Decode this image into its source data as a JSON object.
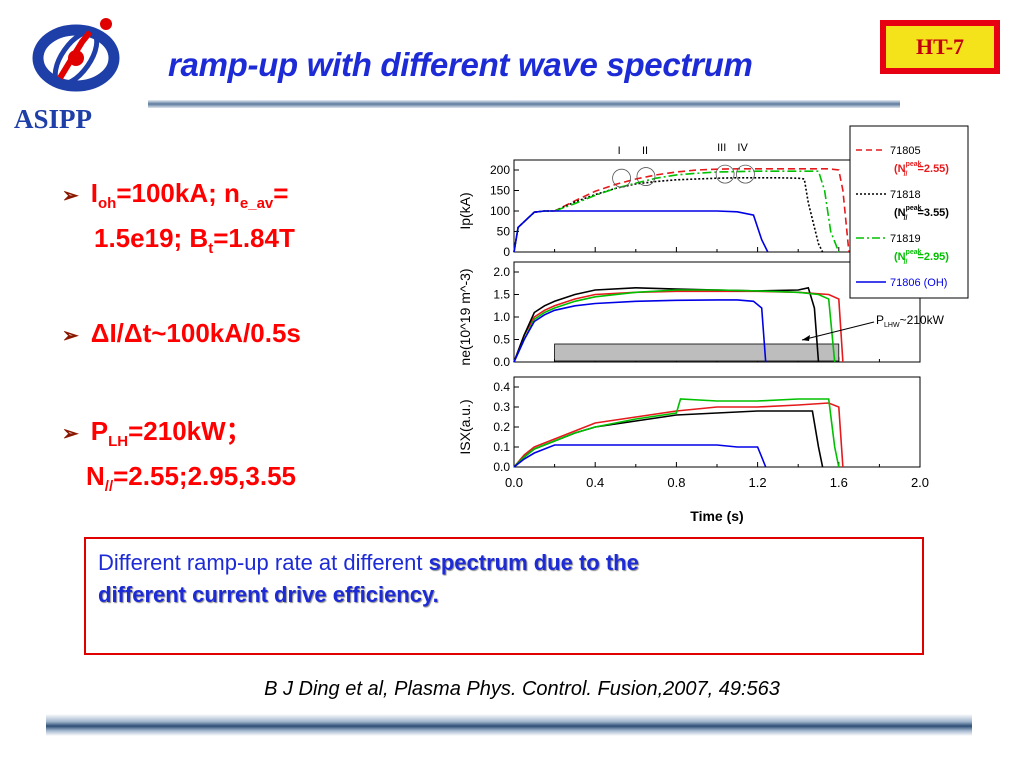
{
  "title": "ramp-up with different wave spectrum",
  "logo_text": "ASIPP",
  "badge": "HT-7",
  "bullets": {
    "b1": {
      "p1": "I",
      "s1": "oh",
      "p2": "=100kA; n",
      "s2": "e_av",
      "p3": "=",
      "line2a": "1.5e19; B",
      "s3": "t",
      "line2b": "=1.84T"
    },
    "b2": {
      "text": "ΔI/Δt~100kA/0.5s"
    },
    "b3": {
      "p1": "P",
      "s1": "LH",
      "p2": "=210kW；",
      "line2a": "N",
      "s2": "//",
      "line2b": "=2.55;2.95,3.55"
    }
  },
  "box": {
    "normal": "Different ramp-up rate at different ",
    "bold1": "spectrum due to the",
    "bold2": "different current drive efficiency."
  },
  "citation": "B J Ding et al, Plasma Phys. Control. Fusion,2007, 49:563",
  "chart_data": [
    {
      "type": "line",
      "panel": "Ip",
      "ylabel": "Ip(kA)",
      "ylim": [
        0,
        200
      ],
      "yticks": [
        "0",
        "50",
        "100",
        "150",
        "200"
      ],
      "xlim": [
        0,
        2.0
      ],
      "annotations": [
        "I",
        "II",
        "III",
        "IV"
      ],
      "series": [
        {
          "name": "71805",
          "color": "#e41a1c",
          "dash": "7,4",
          "x": [
            0.0,
            0.02,
            0.1,
            0.15,
            0.2,
            0.3,
            0.4,
            0.5,
            0.6,
            0.7,
            0.8,
            0.9,
            1.0,
            1.1,
            1.2,
            1.3,
            1.4,
            1.5,
            1.55,
            1.6,
            1.62,
            1.65
          ],
          "y": [
            0,
            60,
            97,
            100,
            100,
            125,
            148,
            165,
            178,
            188,
            195,
            200,
            202,
            203,
            203,
            203,
            203,
            203,
            203,
            200,
            150,
            0
          ]
        },
        {
          "name": "71818",
          "color": "#000000",
          "dash": "2,2",
          "x": [
            0.0,
            0.02,
            0.1,
            0.15,
            0.2,
            0.3,
            0.4,
            0.5,
            0.6,
            0.7,
            0.8,
            0.9,
            1.0,
            1.1,
            1.2,
            1.3,
            1.4,
            1.43,
            1.45,
            1.5,
            1.52
          ],
          "y": [
            0,
            60,
            97,
            100,
            100,
            122,
            140,
            155,
            166,
            172,
            176,
            178,
            180,
            181,
            181,
            181,
            180,
            178,
            120,
            20,
            0
          ]
        },
        {
          "name": "71819",
          "color": "#00c000",
          "dash": "9,3,2,3",
          "x": [
            0.0,
            0.02,
            0.1,
            0.15,
            0.2,
            0.3,
            0.4,
            0.5,
            0.6,
            0.7,
            0.8,
            0.9,
            1.0,
            1.1,
            1.2,
            1.3,
            1.4,
            1.5,
            1.53,
            1.56,
            1.6
          ],
          "y": [
            0,
            60,
            97,
            100,
            100,
            118,
            138,
            155,
            168,
            180,
            188,
            192,
            195,
            196,
            197,
            197,
            197,
            197,
            150,
            50,
            0
          ]
        },
        {
          "name": "71806 (OH)",
          "color": "#0000e6",
          "dash": "",
          "x": [
            0.0,
            0.02,
            0.1,
            0.15,
            0.2,
            0.4,
            0.6,
            0.8,
            1.0,
            1.1,
            1.18,
            1.22,
            1.25
          ],
          "y": [
            0,
            60,
            97,
            100,
            100,
            100,
            100,
            100,
            100,
            98,
            90,
            30,
            0
          ]
        }
      ]
    },
    {
      "type": "line",
      "panel": "ne",
      "ylabel": "ne(10^19 m^-3)",
      "ylim": [
        0,
        2.0
      ],
      "yticks": [
        "0.0",
        "0.5",
        "1.0",
        "1.5",
        "2.0"
      ],
      "xlim": [
        0,
        2.0
      ],
      "annotations": [
        "P_LHW~210kW"
      ],
      "lhw_pulse": [
        0.2,
        1.6
      ],
      "series": [
        {
          "name": "71805",
          "color": "#e41a1c",
          "dash": "",
          "x": [
            0.0,
            0.05,
            0.1,
            0.15,
            0.2,
            0.3,
            0.4,
            0.6,
            0.8,
            1.0,
            1.2,
            1.4,
            1.55,
            1.6,
            1.62
          ],
          "y": [
            0,
            0.6,
            1.0,
            1.15,
            1.25,
            1.4,
            1.5,
            1.55,
            1.57,
            1.57,
            1.57,
            1.55,
            1.5,
            1.4,
            0
          ]
        },
        {
          "name": "71818",
          "color": "#000000",
          "dash": "",
          "x": [
            0.0,
            0.05,
            0.1,
            0.15,
            0.2,
            0.3,
            0.4,
            0.6,
            0.8,
            1.0,
            1.2,
            1.4,
            1.45,
            1.48,
            1.5
          ],
          "y": [
            0,
            0.6,
            1.1,
            1.25,
            1.35,
            1.5,
            1.6,
            1.65,
            1.62,
            1.6,
            1.58,
            1.6,
            1.65,
            1.2,
            0
          ]
        },
        {
          "name": "71819",
          "color": "#00c000",
          "dash": "",
          "x": [
            0.0,
            0.05,
            0.1,
            0.15,
            0.2,
            0.3,
            0.4,
            0.6,
            0.8,
            1.0,
            1.2,
            1.4,
            1.5,
            1.55,
            1.58
          ],
          "y": [
            0,
            0.5,
            0.95,
            1.1,
            1.2,
            1.35,
            1.45,
            1.55,
            1.6,
            1.6,
            1.58,
            1.55,
            1.5,
            1.4,
            0
          ]
        },
        {
          "name": "71806 (OH)",
          "color": "#0000e6",
          "dash": "",
          "x": [
            0.0,
            0.05,
            0.1,
            0.15,
            0.2,
            0.3,
            0.4,
            0.6,
            0.8,
            1.0,
            1.1,
            1.18,
            1.22,
            1.24
          ],
          "y": [
            0,
            0.5,
            0.9,
            1.05,
            1.15,
            1.25,
            1.3,
            1.35,
            1.37,
            1.38,
            1.38,
            1.35,
            1.2,
            0
          ]
        }
      ]
    },
    {
      "type": "line",
      "panel": "ISX",
      "ylabel": "ISX(a.u.)",
      "ylim": [
        0,
        0.4
      ],
      "yticks": [
        "0.0",
        "0.1",
        "0.2",
        "0.3",
        "0.4"
      ],
      "xlim": [
        0,
        2.0
      ],
      "xticks": [
        "0.0",
        "0.4",
        "0.8",
        "1.2",
        "1.6",
        "2.0"
      ],
      "xlabel": "Time (s)",
      "series": [
        {
          "name": "71805",
          "color": "#e41a1c",
          "dash": "",
          "x": [
            0.0,
            0.05,
            0.1,
            0.2,
            0.3,
            0.4,
            0.6,
            0.8,
            1.0,
            1.2,
            1.4,
            1.55,
            1.6,
            1.62
          ],
          "y": [
            0,
            0.06,
            0.1,
            0.14,
            0.18,
            0.22,
            0.25,
            0.28,
            0.3,
            0.3,
            0.31,
            0.32,
            0.3,
            0
          ]
        },
        {
          "name": "71818",
          "color": "#000000",
          "dash": "",
          "x": [
            0.0,
            0.05,
            0.1,
            0.2,
            0.3,
            0.4,
            0.6,
            0.8,
            1.0,
            1.2,
            1.4,
            1.47,
            1.5,
            1.52
          ],
          "y": [
            0,
            0.05,
            0.09,
            0.13,
            0.17,
            0.2,
            0.23,
            0.26,
            0.27,
            0.28,
            0.28,
            0.28,
            0.1,
            0
          ]
        },
        {
          "name": "71819",
          "color": "#00c000",
          "dash": "",
          "x": [
            0.0,
            0.05,
            0.1,
            0.2,
            0.3,
            0.4,
            0.6,
            0.8,
            0.82,
            1.0,
            1.2,
            1.4,
            1.55,
            1.58,
            1.6
          ],
          "y": [
            0,
            0.05,
            0.09,
            0.13,
            0.17,
            0.2,
            0.24,
            0.27,
            0.34,
            0.33,
            0.33,
            0.34,
            0.34,
            0.1,
            0
          ]
        },
        {
          "name": "71806 (OH)",
          "color": "#0000e6",
          "dash": "",
          "x": [
            0.0,
            0.05,
            0.1,
            0.15,
            0.2,
            0.25,
            0.4,
            0.6,
            0.8,
            1.0,
            1.1,
            1.2,
            1.22,
            1.24
          ],
          "y": [
            0,
            0.04,
            0.07,
            0.09,
            0.11,
            0.11,
            0.11,
            0.11,
            0.11,
            0.11,
            0.1,
            0.1,
            0.05,
            0
          ]
        }
      ]
    }
  ],
  "legend": {
    "entries": [
      {
        "label": "71805",
        "color": "#e41a1c",
        "dash": "6,4",
        "note": "(N",
        "sup": "peak",
        "sub": "//",
        "val": "=2.55)",
        "note_color": "#e41a1c"
      },
      {
        "label": "71818",
        "color": "#000000",
        "dash": "2,2",
        "note": "(N",
        "sup": "peak",
        "sub": "//",
        "val": "=3.55)",
        "note_color": "#000000"
      },
      {
        "label": "71819",
        "color": "#00c000",
        "dash": "8,3,2,3",
        "note": "(N",
        "sup": "peak",
        "sub": "//",
        "val": "=2.95)",
        "note_color": "#00c000"
      },
      {
        "label": "71806 (OH)",
        "color": "#0000e6",
        "dash": "",
        "note": "",
        "sup": "",
        "sub": "",
        "val": "",
        "note_color": "#0000e6"
      }
    ]
  },
  "colors": {
    "title": "#1d2bd6",
    "bullet": "#ff0000",
    "box_border": "#e00000"
  }
}
